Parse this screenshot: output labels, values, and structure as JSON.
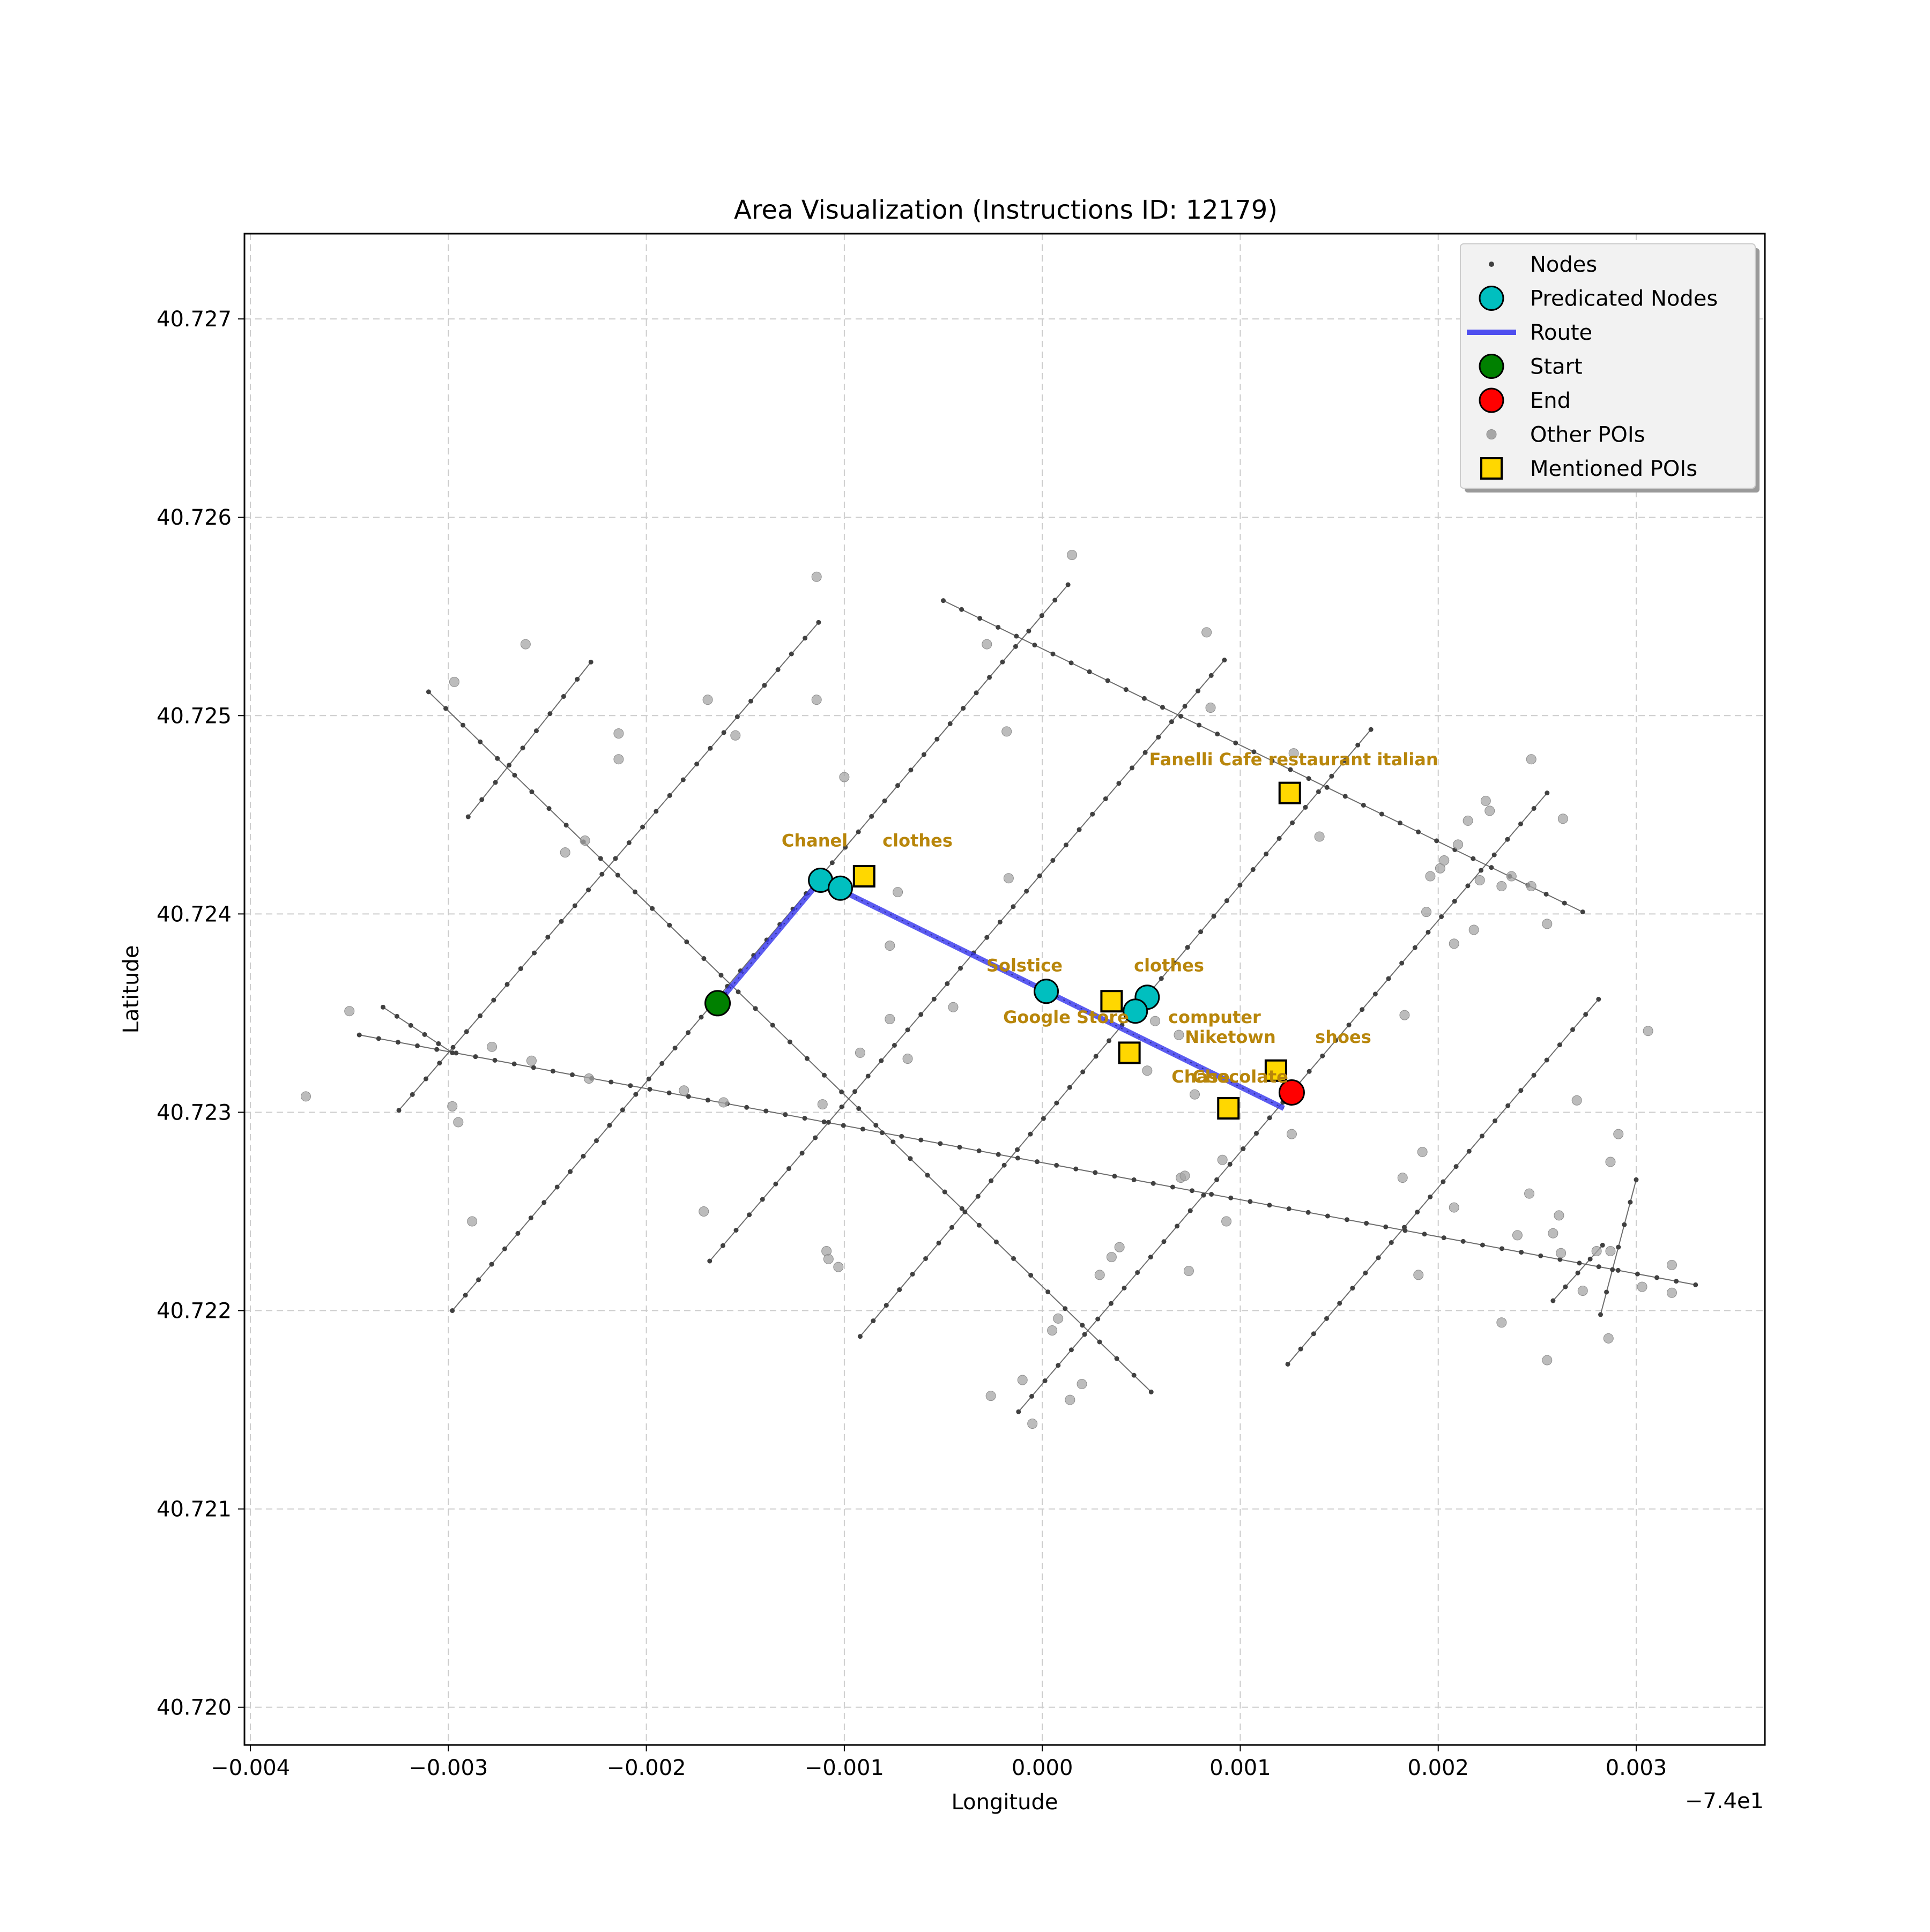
{
  "colors": {
    "node": "#404040",
    "street": "#555555",
    "predicated_node": "#00BFBF",
    "route": "#3333EE",
    "start": "#008000",
    "end": "#FF0000",
    "other_poi": "#A6A6A6",
    "mentioned_poi": "#FFD700",
    "poi_label": "#B8860B",
    "grid": "#CCCCCC"
  },
  "chart_data": {
    "type": "scatter",
    "title": "Area Visualization (Instructions ID: 12179)",
    "xlabel": "Longitude",
    "ylabel": "Latitude",
    "x_offset_label": "−7.4e1",
    "xlim": [
      -0.00403,
      0.00365
    ],
    "ylim": [
      40.71981,
      40.72743
    ],
    "grid": true,
    "legend_position": "upper right",
    "xticks": [
      {
        "value": -0.004,
        "label": "−0.004"
      },
      {
        "value": -0.003,
        "label": "−0.003"
      },
      {
        "value": -0.002,
        "label": "−0.002"
      },
      {
        "value": -0.001,
        "label": "−0.001"
      },
      {
        "value": 0.0,
        "label": "0.000"
      },
      {
        "value": 0.001,
        "label": "0.001"
      },
      {
        "value": 0.002,
        "label": "0.002"
      },
      {
        "value": 0.003,
        "label": "0.003"
      }
    ],
    "yticks": [
      {
        "value": 40.72,
        "label": "40.720"
      },
      {
        "value": 40.721,
        "label": "40.721"
      },
      {
        "value": 40.722,
        "label": "40.722"
      },
      {
        "value": 40.723,
        "label": "40.723"
      },
      {
        "value": 40.724,
        "label": "40.724"
      },
      {
        "value": 40.725,
        "label": "40.725"
      },
      {
        "value": 40.726,
        "label": "40.726"
      },
      {
        "value": 40.727,
        "label": "40.727"
      }
    ],
    "legend": [
      {
        "label": "Nodes",
        "marker": "node"
      },
      {
        "label": "Predicated Nodes",
        "marker": "predicated"
      },
      {
        "label": "Route",
        "marker": "route"
      },
      {
        "label": "Start",
        "marker": "start"
      },
      {
        "label": "End",
        "marker": "end"
      },
      {
        "label": "Other POIs",
        "marker": "other"
      },
      {
        "label": "Mentioned POIs",
        "marker": "mentioned"
      }
    ],
    "streets": [
      {
        "from": [
          -0.0031,
          40.72512
        ],
        "to": [
          0.00055,
          40.72159
        ],
        "nodes": 43
      },
      {
        "from": [
          -0.0005,
          40.72558
        ],
        "to": [
          0.00273,
          40.72401
        ],
        "nodes": 36
      },
      {
        "from": [
          -0.0029,
          40.72449
        ],
        "to": [
          -0.00228,
          40.72527
        ],
        "nodes": 10
      },
      {
        "from": [
          -0.00325,
          40.72301
        ],
        "to": [
          -0.00113,
          40.72547
        ],
        "nodes": 32
      },
      {
        "from": [
          -0.00298,
          40.722
        ],
        "to": [
          0.00013,
          40.72566
        ],
        "nodes": 48
      },
      {
        "from": [
          -0.00168,
          40.72225
        ],
        "to": [
          0.00092,
          40.72528
        ],
        "nodes": 40
      },
      {
        "from": [
          -0.00092,
          40.72187
        ],
        "to": [
          0.00166,
          40.72493
        ],
        "nodes": 40
      },
      {
        "from": [
          -0.00012,
          40.72149
        ],
        "to": [
          0.00255,
          40.72461
        ],
        "nodes": 41
      },
      {
        "from": [
          0.00124,
          40.72173
        ],
        "to": [
          0.00281,
          40.72357
        ],
        "nodes": 25
      },
      {
        "from": [
          -0.00345,
          40.72339
        ],
        "to": [
          0.0033,
          40.72213
        ],
        "nodes": 70
      },
      {
        "from": [
          -0.00333,
          40.72353
        ],
        "to": [
          -0.00298,
          40.7233
        ],
        "nodes": 6
      },
      {
        "from": [
          0.00258,
          40.72205
        ],
        "to": [
          0.00283,
          40.72233
        ],
        "nodes": 5
      },
      {
        "from": [
          0.00282,
          40.72198
        ],
        "to": [
          0.003,
          40.72266
        ],
        "nodes": 7
      }
    ],
    "route": [
      [
        -0.00164,
        40.72355
      ],
      [
        -0.00112,
        40.72417
      ],
      [
        0.00122,
        40.72302
      ]
    ],
    "predicated_nodes": [
      [
        -0.00112,
        40.72417
      ],
      [
        -0.00102,
        40.72413
      ],
      [
        2e-05,
        40.72361
      ],
      [
        0.00053,
        40.72358
      ],
      [
        0.00047,
        40.72351
      ]
    ],
    "start": [
      -0.00164,
      40.72355
    ],
    "end": [
      0.00126,
      40.7231
    ],
    "mentioned_pois": [
      {
        "x": -0.0009,
        "y": 40.72419
      },
      {
        "x": 0.00035,
        "y": 40.72356
      },
      {
        "x": 0.00044,
        "y": 40.7233
      },
      {
        "x": 0.00094,
        "y": 40.72302
      },
      {
        "x": 0.00118,
        "y": 40.72321
      },
      {
        "x": 0.00125,
        "y": 40.72461
      }
    ],
    "poi_labels": [
      {
        "text": "Chanel",
        "x": -0.00115,
        "y": 40.72434
      },
      {
        "text": "clothes",
        "x": -0.00063,
        "y": 40.72434
      },
      {
        "text": "Solstice",
        "x": -9e-05,
        "y": 40.72371
      },
      {
        "text": "clothes",
        "x": 0.00064,
        "y": 40.72371
      },
      {
        "text": "Google Store",
        "x": 0.00012,
        "y": 40.72345
      },
      {
        "text": "computer",
        "x": 0.00087,
        "y": 40.72345
      },
      {
        "text": "Niketown",
        "x": 0.00095,
        "y": 40.72335
      },
      {
        "text": "shoes",
        "x": 0.00152,
        "y": 40.72335
      },
      {
        "text": "Chase",
        "x": 0.0008,
        "y": 40.72315
      },
      {
        "text": "Chocolate",
        "x": 0.001,
        "y": 40.72315
      },
      {
        "text": "Fanelli Cafe restaurant italian",
        "x": 0.00127,
        "y": 40.72475
      }
    ],
    "other_pois": [
      [
        -0.00372,
        40.72308
      ],
      [
        -0.0035,
        40.72351
      ],
      [
        -0.00297,
        40.72517
      ],
      [
        -0.00261,
        40.72536
      ],
      [
        -0.00298,
        40.72303
      ],
      [
        -0.00295,
        40.72295
      ],
      [
        -0.00288,
        40.72245
      ],
      [
        -0.00278,
        40.72333
      ],
      [
        -0.00258,
        40.72326
      ],
      [
        -0.00241,
        40.72431
      ],
      [
        -0.00231,
        40.72437
      ],
      [
        -0.00229,
        40.72317
      ],
      [
        -0.00214,
        40.72491
      ],
      [
        -0.00214,
        40.72478
      ],
      [
        -0.00181,
        40.72311
      ],
      [
        -0.00169,
        40.72508
      ],
      [
        -0.00155,
        40.7249
      ],
      [
        -0.00161,
        40.72305
      ],
      [
        -0.00171,
        40.7225
      ],
      [
        -0.00114,
        40.7257
      ],
      [
        -0.00114,
        40.72508
      ],
      [
        -0.00111,
        40.72304
      ],
      [
        -0.00109,
        40.7223
      ],
      [
        -0.00108,
        40.72226
      ],
      [
        -0.00103,
        40.72222
      ],
      [
        -0.001,
        40.72469
      ],
      [
        -0.00092,
        40.7233
      ],
      [
        -0.00077,
        40.72384
      ],
      [
        -0.00077,
        40.72347
      ],
      [
        -0.00073,
        40.72411
      ],
      [
        -0.00068,
        40.72327
      ],
      [
        -0.00045,
        40.72353
      ],
      [
        -0.00028,
        40.72536
      ],
      [
        -0.00018,
        40.72492
      ],
      [
        -0.00017,
        40.72418
      ],
      [
        -0.00026,
        40.72157
      ],
      [
        -0.0001,
        40.72165
      ],
      [
        -5e-05,
        40.72143
      ],
      [
        5e-05,
        40.7219
      ],
      [
        8e-05,
        40.72196
      ],
      [
        0.00014,
        40.72155
      ],
      [
        0.0002,
        40.72163
      ],
      [
        0.00015,
        40.72581
      ],
      [
        0.00029,
        40.72218
      ],
      [
        0.00035,
        40.72227
      ],
      [
        0.00039,
        40.72232
      ],
      [
        0.00053,
        40.72321
      ],
      [
        0.00057,
        40.72346
      ],
      [
        0.00069,
        40.72339
      ],
      [
        0.0007,
        40.72267
      ],
      [
        0.00072,
        40.72268
      ],
      [
        0.00074,
        40.7222
      ],
      [
        0.00077,
        40.72309
      ],
      [
        0.00083,
        40.72542
      ],
      [
        0.00085,
        40.72504
      ],
      [
        0.00091,
        40.72276
      ],
      [
        0.00093,
        40.72245
      ],
      [
        0.00127,
        40.72481
      ],
      [
        0.0014,
        40.72439
      ],
      [
        0.00126,
        40.72289
      ],
      [
        0.00183,
        40.72349
      ],
      [
        0.00192,
        40.7228
      ],
      [
        0.00182,
        40.72267
      ],
      [
        0.0019,
        40.72218
      ],
      [
        0.00194,
        40.72401
      ],
      [
        0.00196,
        40.72419
      ],
      [
        0.00201,
        40.72423
      ],
      [
        0.00203,
        40.72427
      ],
      [
        0.00208,
        40.72385
      ],
      [
        0.0021,
        40.72435
      ],
      [
        0.00215,
        40.72447
      ],
      [
        0.00218,
        40.72392
      ],
      [
        0.00221,
        40.72417
      ],
      [
        0.00224,
        40.72457
      ],
      [
        0.00226,
        40.72452
      ],
      [
        0.00208,
        40.72252
      ],
      [
        0.00232,
        40.72414
      ],
      [
        0.00237,
        40.72419
      ],
      [
        0.0024,
        40.72238
      ],
      [
        0.00247,
        40.72414
      ],
      [
        0.00247,
        40.72478
      ],
      [
        0.00255,
        40.72395
      ],
      [
        0.00263,
        40.72448
      ],
      [
        0.00246,
        40.72259
      ],
      [
        0.00258,
        40.72239
      ],
      [
        0.00261,
        40.72248
      ],
      [
        0.00262,
        40.72229
      ],
      [
        0.0027,
        40.72306
      ],
      [
        0.00273,
        40.7221
      ],
      [
        0.00286,
        40.72186
      ],
      [
        0.00291,
        40.72289
      ],
      [
        0.00287,
        40.72275
      ],
      [
        0.00232,
        40.72194
      ],
      [
        0.00255,
        40.72175
      ],
      [
        0.0028,
        40.7223
      ],
      [
        0.00287,
        40.7223
      ],
      [
        0.00303,
        40.72212
      ],
      [
        0.00306,
        40.72341
      ],
      [
        0.00318,
        40.72209
      ],
      [
        0.00318,
        40.72223
      ]
    ]
  }
}
